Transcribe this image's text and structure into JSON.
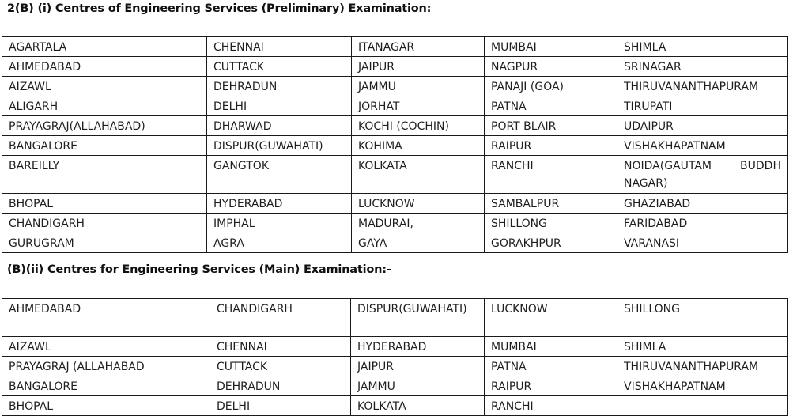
{
  "section_1": {
    "heading": "2(B) (i) Centres of Engineering Services (Preliminary) Examination:",
    "rows": [
      [
        "AGARTALA",
        "CHENNAI",
        "ITANAGAR",
        "MUMBAI",
        "SHIMLA"
      ],
      [
        "AHMEDABAD",
        "CUTTACK",
        "JAIPUR",
        "NAGPUR",
        "SRINAGAR"
      ],
      [
        "AIZAWL",
        "DEHRADUN",
        "JAMMU",
        "PANAJI (GOA)",
        "THIRUVANANTHAPURAM"
      ],
      [
        "ALIGARH",
        "DELHI",
        "JORHAT",
        "PATNA",
        "TIRUPATI"
      ],
      [
        "PRAYAGRAJ(ALLAHABAD)",
        "DHARWAD",
        "KOCHI (COCHIN)",
        "PORT BLAIR",
        "UDAIPUR"
      ],
      [
        "BANGALORE",
        "DISPUR(GUWAHATI)",
        "KOHIMA",
        "RAIPUR",
        "VISHAKHAPATNAM"
      ],
      [
        "BAREILLY",
        "GANGTOK",
        "KOLKATA",
        "RANCHI",
        "NOIDA(GAUTAM BUDDH NAGAR)"
      ],
      [
        "BHOPAL",
        "HYDERABAD",
        "LUCKNOW",
        "SAMBALPUR",
        "GHAZIABAD"
      ],
      [
        "CHANDIGARH",
        "IMPHAL",
        "MADURAI,",
        "SHILLONG",
        "FARIDABAD"
      ],
      [
        "GURUGRAM",
        "AGRA",
        "GAYA",
        "GORAKHPUR",
        "VARANASI"
      ]
    ]
  },
  "section_2": {
    "heading": "(B)(ii) Centres for Engineering Services (Main) Examination:-",
    "rows": [
      [
        "AHMEDABAD",
        "CHANDIGARH",
        "DISPUR(GUWAHATI)",
        "LUCKNOW",
        "SHILLONG"
      ],
      [
        "AIZAWL",
        "CHENNAI",
        "HYDERABAD",
        "MUMBAI",
        "SHIMLA"
      ],
      [
        "PRAYAGRAJ (ALLAHABAD",
        "CUTTACK",
        "JAIPUR",
        "PATNA",
        "THIRUVANANTHAPURAM"
      ],
      [
        "BANGALORE",
        "DEHRADUN",
        "JAMMU",
        "RAIPUR",
        "VISHAKHAPATNAM"
      ],
      [
        "BHOPAL",
        "DELHI",
        "KOLKATA",
        "RANCHI",
        ""
      ]
    ]
  }
}
